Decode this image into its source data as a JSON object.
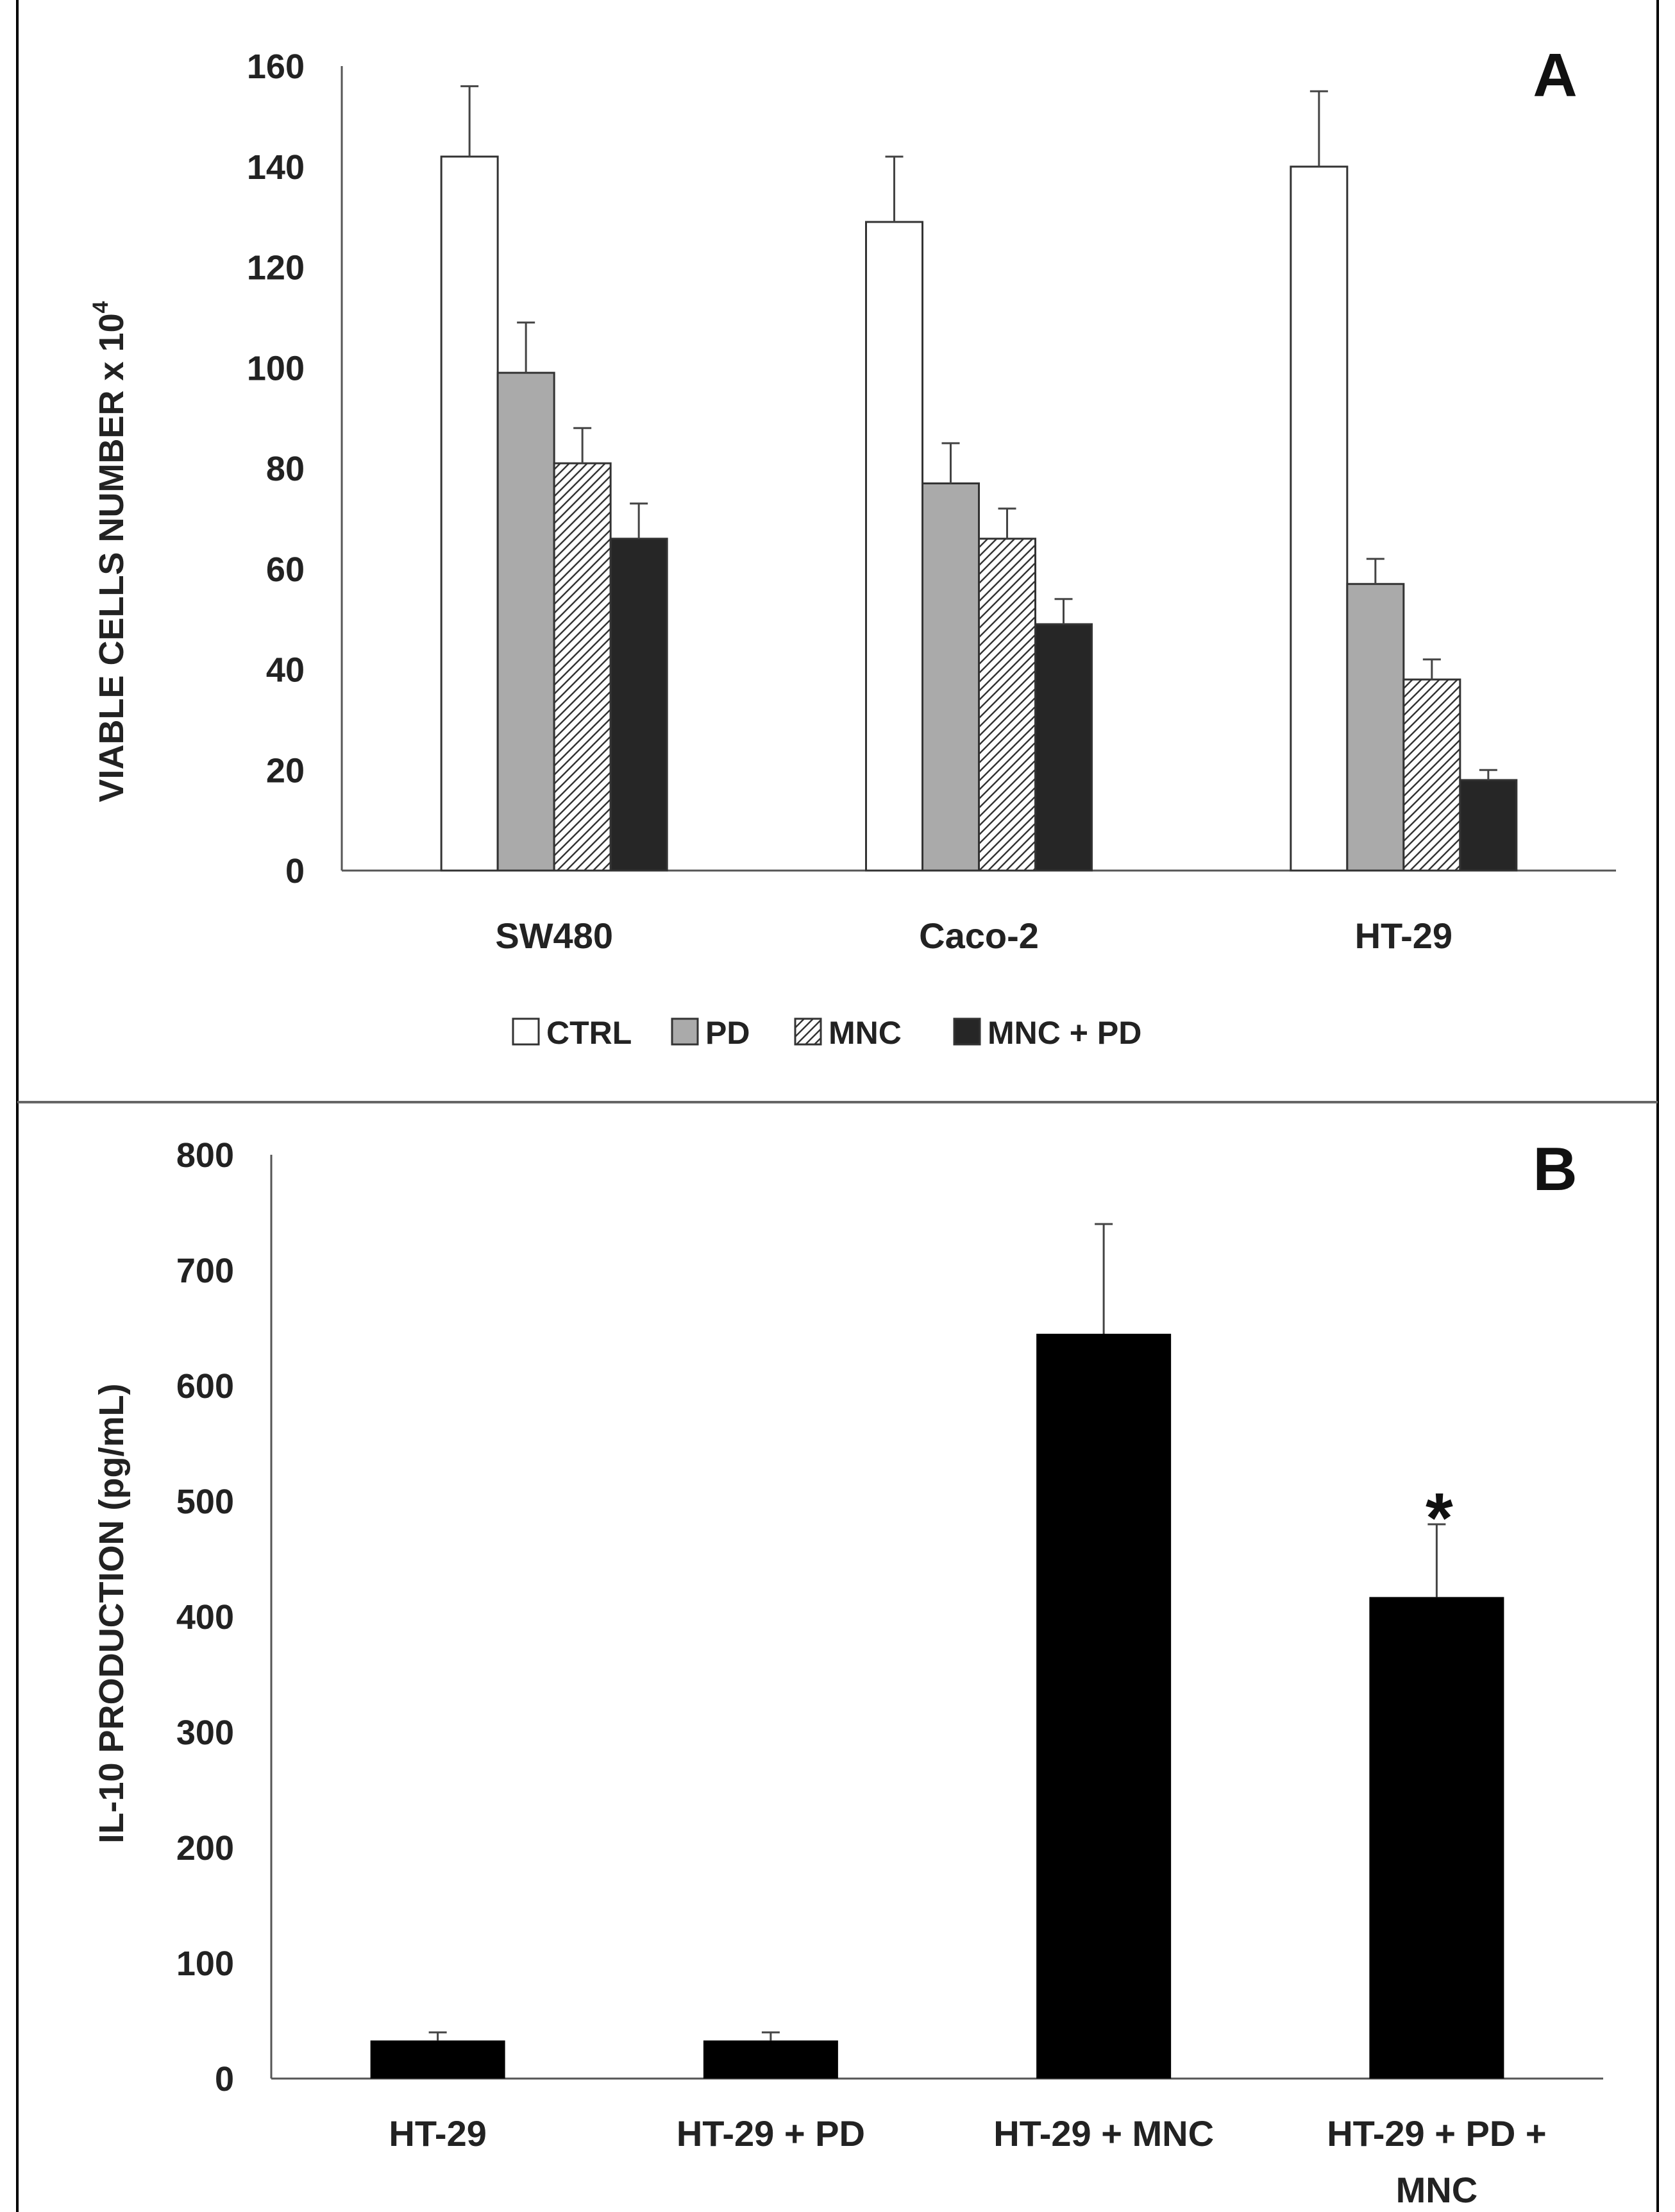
{
  "chart_data": [
    {
      "panel_label": "A",
      "type": "bar",
      "ylabel": "VIABLE CELLS NUMBER x 10",
      "ylabel_superscript": "4",
      "ylim": [
        0,
        160
      ],
      "yticks": [
        0,
        20,
        40,
        60,
        80,
        100,
        120,
        140,
        160
      ],
      "categories": [
        "SW480",
        "Caco-2",
        "HT-29"
      ],
      "series": [
        {
          "name": "CTRL",
          "fill": "white",
          "values": [
            142,
            129,
            140
          ],
          "errors": [
            14,
            13,
            15
          ]
        },
        {
          "name": "PD",
          "fill": "#aaaaaa",
          "values": [
            99,
            77,
            57
          ],
          "errors": [
            10,
            8,
            5
          ]
        },
        {
          "name": "MNC",
          "fill": "hatch",
          "values": [
            81,
            66,
            38
          ],
          "errors": [
            7,
            6,
            4
          ]
        },
        {
          "name": "MNC + PD",
          "fill": "#262626",
          "values": [
            66,
            49,
            18
          ],
          "errors": [
            7,
            5,
            2
          ]
        }
      ],
      "legend": [
        "CTRL",
        "PD",
        "MNC",
        "MNC + PD"
      ],
      "legend_position": "bottom",
      "grid": false
    },
    {
      "panel_label": "B",
      "type": "bar",
      "ylabel": "IL-10 PRODUCTION (pg/mL)",
      "ylim": [
        0,
        800
      ],
      "yticks": [
        0,
        100,
        200,
        300,
        400,
        500,
        600,
        700,
        800
      ],
      "categories": [
        {
          "line1": "HT-29",
          "line2": ""
        },
        {
          "line1": "HT-29 + PD",
          "line2": ""
        },
        {
          "line1": "HT-29 + MNC",
          "line2": ""
        },
        {
          "line1": "HT-29 + PD +",
          "line2": "MNC"
        }
      ],
      "values": [
        33,
        33,
        645,
        417
      ],
      "errors": [
        7,
        7,
        95,
        63
      ],
      "bar_color": "#000000",
      "annotations": [
        {
          "category_index": 3,
          "text": "*"
        }
      ],
      "grid": false
    }
  ]
}
